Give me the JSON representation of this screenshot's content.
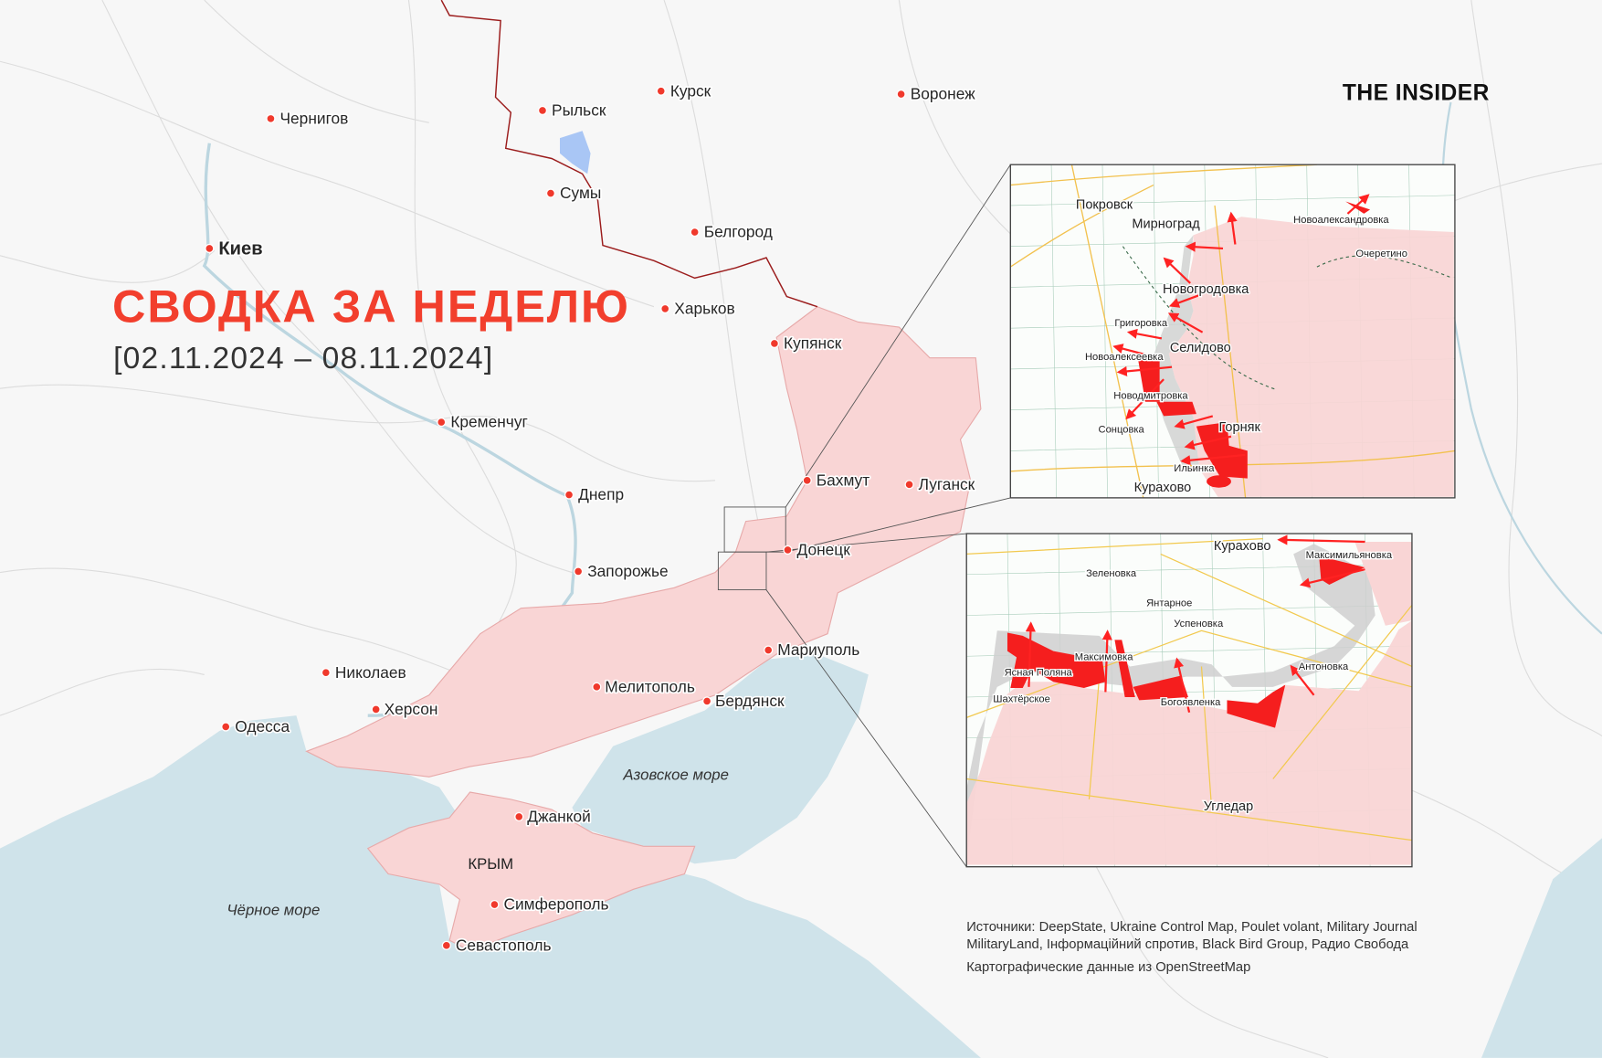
{
  "header": {
    "title": "СВОДКА ЗА НЕДЕЛЮ",
    "date_range": "[02.11.2024 – 08.11.2024]",
    "logo": "THE INSIDER"
  },
  "colors": {
    "occupied": "#f9d5d5",
    "advance": "#f51e1e",
    "contested": "#c8c8c8",
    "sea": "#cfe3ea",
    "accent": "#f23f2d",
    "border": "#9b1c1c",
    "kursk_incursion": "#a9c6f5"
  },
  "cities": {
    "chernigov": "Чернигов",
    "rylsk": "Рыльск",
    "kursk": "Курск",
    "voronezh": "Воронеж",
    "sumy": "Сумы",
    "kiev": "Киев",
    "belgorod": "Белгород",
    "kharkov": "Харьков",
    "kupyansk": "Купянск",
    "kremenchug": "Кременчуг",
    "bakhmut": "Бахмут",
    "lugansk": "Луганск",
    "dnepr": "Днепр",
    "donetsk": "Донецк",
    "zaporozhye": "Запорожье",
    "mariupol": "Мариуполь",
    "nikolaev": "Николаев",
    "melitopol": "Мелитополь",
    "kherson": "Херсон",
    "berdyansk": "Бердянск",
    "odessa": "Одесса",
    "dzhankoy": "Джанкой",
    "simferopol": "Симферополь",
    "sevastopol": "Севастополь"
  },
  "labels": {
    "azov_sea": "Азовское море",
    "black_sea": "Чёрное море",
    "crimea": "КРЫМ"
  },
  "inset_pokrovsk": {
    "places": {
      "pokrovsk": "Покровск",
      "myrnohrad": "Мирноград",
      "novoaleksandrovka": "Новоалександровка",
      "ocheretino": "Очеретино",
      "novogrodovka": "Новогродовка",
      "grigorovka": "Григоровка",
      "selidovo": "Селидово",
      "novoalekseevka": "Новоалексеевка",
      "novodmitrovka": "Новодмитровка",
      "gornyak": "Горняк",
      "sontsovka": "Сонцовка",
      "ilyinka": "Ильинка",
      "kurakhovo": "Курахово"
    }
  },
  "inset_kurakhovo": {
    "places": {
      "kurakhovo": "Курахово",
      "maksimilyanovka": "Максимильяновка",
      "zelenovka": "Зеленовка",
      "yantarnoe": "Янтарное",
      "uspenovka": "Успеновка",
      "maksimovka": "Максимовка",
      "yasnaya_polyana": "Ясная Поляна",
      "antonovka": "Антоновка",
      "shakhterskoe": "Шахтёрское",
      "bogoyavlenka": "Богоявленка",
      "ugledar": "Угледар"
    }
  },
  "sources": {
    "line1": "Источники: DeepState, Ukraine Control Map, Poulet volant, Military Journal",
    "line2": "MilitaryLand, Інформаційний спротив, Black Bird Group, Радио Свобода",
    "line3": "Картографические данные из OpenStreetMap"
  }
}
